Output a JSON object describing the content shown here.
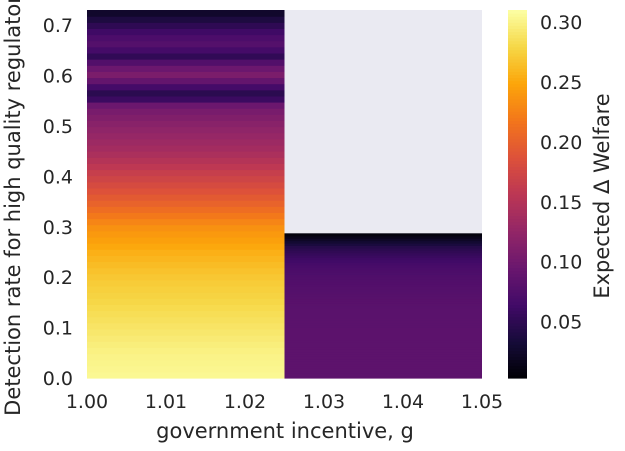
{
  "chart_data": {
    "type": "heatmap",
    "xlabel": "government incentive, g",
    "ylabel": "Detection rate for high quality regulators",
    "xlim": [
      1.0,
      1.05
    ],
    "ylim": [
      0.0,
      0.73
    ],
    "x_ticks": [
      "1.00",
      "1.01",
      "1.02",
      "1.03",
      "1.04",
      "1.05"
    ],
    "y_ticks": [
      "0.0",
      "0.1",
      "0.2",
      "0.3",
      "0.4",
      "0.5",
      "0.6",
      "0.7"
    ],
    "colorbar": {
      "label": "Expected Δ Welfare",
      "colormap": "inferno",
      "range": [
        0.003,
        0.31
      ],
      "ticks": [
        "0.05",
        "0.10",
        "0.15",
        "0.20",
        "0.25",
        "0.30"
      ]
    },
    "missing_color": "#eaeaf2",
    "regions": [
      {
        "x_range": [
          1.0,
          1.025
        ],
        "profile_y": [
          0.0,
          0.05,
          0.1,
          0.15,
          0.2,
          0.25,
          0.3,
          0.35,
          0.4,
          0.45,
          0.5,
          0.54,
          0.56,
          0.58,
          0.6,
          0.62,
          0.64,
          0.66,
          0.68,
          0.7,
          0.73
        ],
        "profile_value": [
          0.305,
          0.3,
          0.29,
          0.28,
          0.27,
          0.255,
          0.235,
          0.2,
          0.17,
          0.14,
          0.12,
          0.1,
          0.04,
          0.07,
          0.11,
          0.09,
          0.05,
          0.08,
          0.07,
          0.05,
          0.02
        ]
      },
      {
        "x_range": [
          1.025,
          1.05
        ],
        "profile_y": [
          0.0,
          0.05,
          0.1,
          0.15,
          0.2,
          0.22,
          0.24,
          0.26,
          0.27,
          0.28,
          0.287
        ],
        "profile_value": [
          0.085,
          0.085,
          0.084,
          0.082,
          0.075,
          0.07,
          0.06,
          0.045,
          0.03,
          0.015,
          0.005
        ]
      }
    ]
  }
}
